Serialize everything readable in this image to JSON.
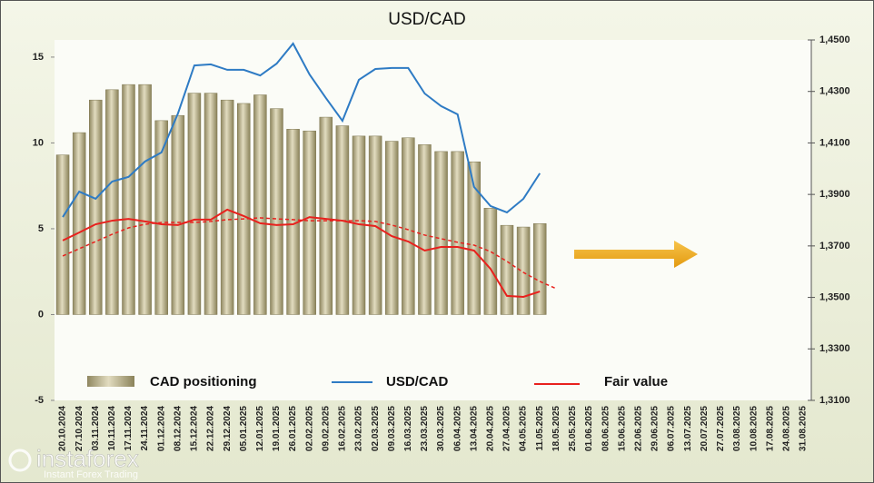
{
  "chart_data": {
    "type": "bar",
    "title": "USD/CAD",
    "categories": [
      "20.10.2024",
      "27.10.2024",
      "03.11.2024",
      "10.11.2024",
      "17.11.2024",
      "24.11.2024",
      "01.12.2024",
      "08.12.2024",
      "15.12.2024",
      "22.12.2024",
      "29.12.2024",
      "05.01.2025",
      "12.01.2025",
      "19.01.2025",
      "26.01.2025",
      "02.02.2025",
      "09.02.2025",
      "16.02.2025",
      "23.02.2025",
      "02.03.2025",
      "09.03.2025",
      "16.03.2025",
      "23.03.2025",
      "30.03.2025",
      "06.04.2025",
      "13.04.2025",
      "20.04.2025",
      "27.04.2025",
      "04.05.2025",
      "11.05.2025",
      "18.05.2025",
      "25.05.2025",
      "01.06.2025",
      "08.06.2025",
      "15.06.2025",
      "22.06.2025",
      "29.06.2025",
      "06.07.2025",
      "13.07.2025",
      "20.07.2025",
      "27.07.2025",
      "03.08.2025",
      "10.08.2025",
      "17.08.2025",
      "24.08.2025",
      "31.08.2025"
    ],
    "series": [
      {
        "name": "CAD positioning",
        "type": "bar",
        "axis": "y",
        "color": "#b5ad85",
        "values": [
          9.3,
          10.6,
          12.5,
          13.1,
          13.4,
          13.4,
          11.3,
          11.6,
          12.9,
          12.9,
          12.5,
          12.3,
          12.8,
          12.0,
          10.8,
          10.7,
          11.5,
          11.0,
          10.4,
          10.4,
          10.1,
          10.3,
          9.9,
          9.5,
          9.5,
          8.9,
          6.2,
          5.2,
          5.1,
          5.3,
          null,
          null,
          null,
          null,
          null,
          null,
          null,
          null,
          null,
          null,
          null,
          null,
          null,
          null,
          null,
          null
        ]
      },
      {
        "name": "USD/CAD",
        "type": "line",
        "axis": "y2",
        "color": "#2e7bc4",
        "values": [
          1.3812,
          1.3911,
          1.3883,
          1.395,
          1.3968,
          1.4028,
          1.4063,
          1.4214,
          1.4401,
          1.4405,
          1.4384,
          1.4384,
          1.4362,
          1.4408,
          1.4486,
          1.4366,
          1.4274,
          1.4186,
          1.4345,
          1.4387,
          1.4391,
          1.4391,
          1.4292,
          1.4243,
          1.4211,
          1.3929,
          1.3855,
          1.383,
          1.3883,
          1.3982,
          null,
          null,
          null,
          null,
          null,
          null,
          null,
          null,
          null,
          null,
          null,
          null,
          null,
          null,
          null,
          null
        ]
      },
      {
        "name": "Fair value",
        "type": "line",
        "axis": "y2",
        "color": "#e8211d",
        "values": [
          1.3721,
          1.3752,
          1.3784,
          1.3798,
          1.3805,
          1.3795,
          1.3784,
          1.3781,
          1.3802,
          1.3802,
          1.3841,
          1.3816,
          1.3788,
          1.3781,
          1.3784,
          1.3812,
          1.3805,
          1.3798,
          1.3784,
          1.3777,
          1.3738,
          1.3717,
          1.3682,
          1.3696,
          1.3696,
          1.3682,
          1.3611,
          1.3506,
          1.3502,
          1.3523,
          null,
          null,
          null,
          null,
          null,
          null,
          null,
          null,
          null,
          null,
          null,
          null,
          null,
          null,
          null,
          null
        ]
      },
      {
        "type": "line",
        "axis": "y2",
        "color": "#e8211d",
        "dashed": true,
        "values": [
          1.3661,
          1.3689,
          1.3717,
          1.3745,
          1.377,
          1.3784,
          1.3791,
          1.3791,
          1.3791,
          1.3795,
          1.3802,
          1.3805,
          1.3809,
          1.3805,
          1.3802,
          1.3798,
          1.3798,
          1.3798,
          1.3798,
          1.3795,
          1.3781,
          1.3763,
          1.3742,
          1.3728,
          1.3714,
          1.3703,
          1.3678,
          1.364,
          1.3597,
          1.3562,
          1.3534,
          null,
          null,
          null,
          null,
          null,
          null,
          null,
          null,
          null,
          null,
          null,
          null,
          null,
          null,
          null
        ]
      }
    ],
    "ylim": [
      -5,
      16
    ],
    "yticks": [
      -5,
      0,
      5,
      10,
      15
    ],
    "y2lim": [
      1.31,
      1.45
    ],
    "y2ticks": [
      {
        "value": 1.31,
        "label": "1,3100"
      },
      {
        "value": 1.33,
        "label": "1,3300"
      },
      {
        "value": 1.35,
        "label": "1,3500"
      },
      {
        "value": 1.37,
        "label": "1,3700"
      },
      {
        "value": 1.39,
        "label": "1,3900"
      },
      {
        "value": 1.41,
        "label": "1,4100"
      },
      {
        "value": 1.43,
        "label": "1,4300"
      },
      {
        "value": 1.45,
        "label": "1,4500"
      }
    ],
    "grid": false,
    "watermark": {
      "brand": "instaforex",
      "tagline": "Instant Forex Trading"
    }
  }
}
